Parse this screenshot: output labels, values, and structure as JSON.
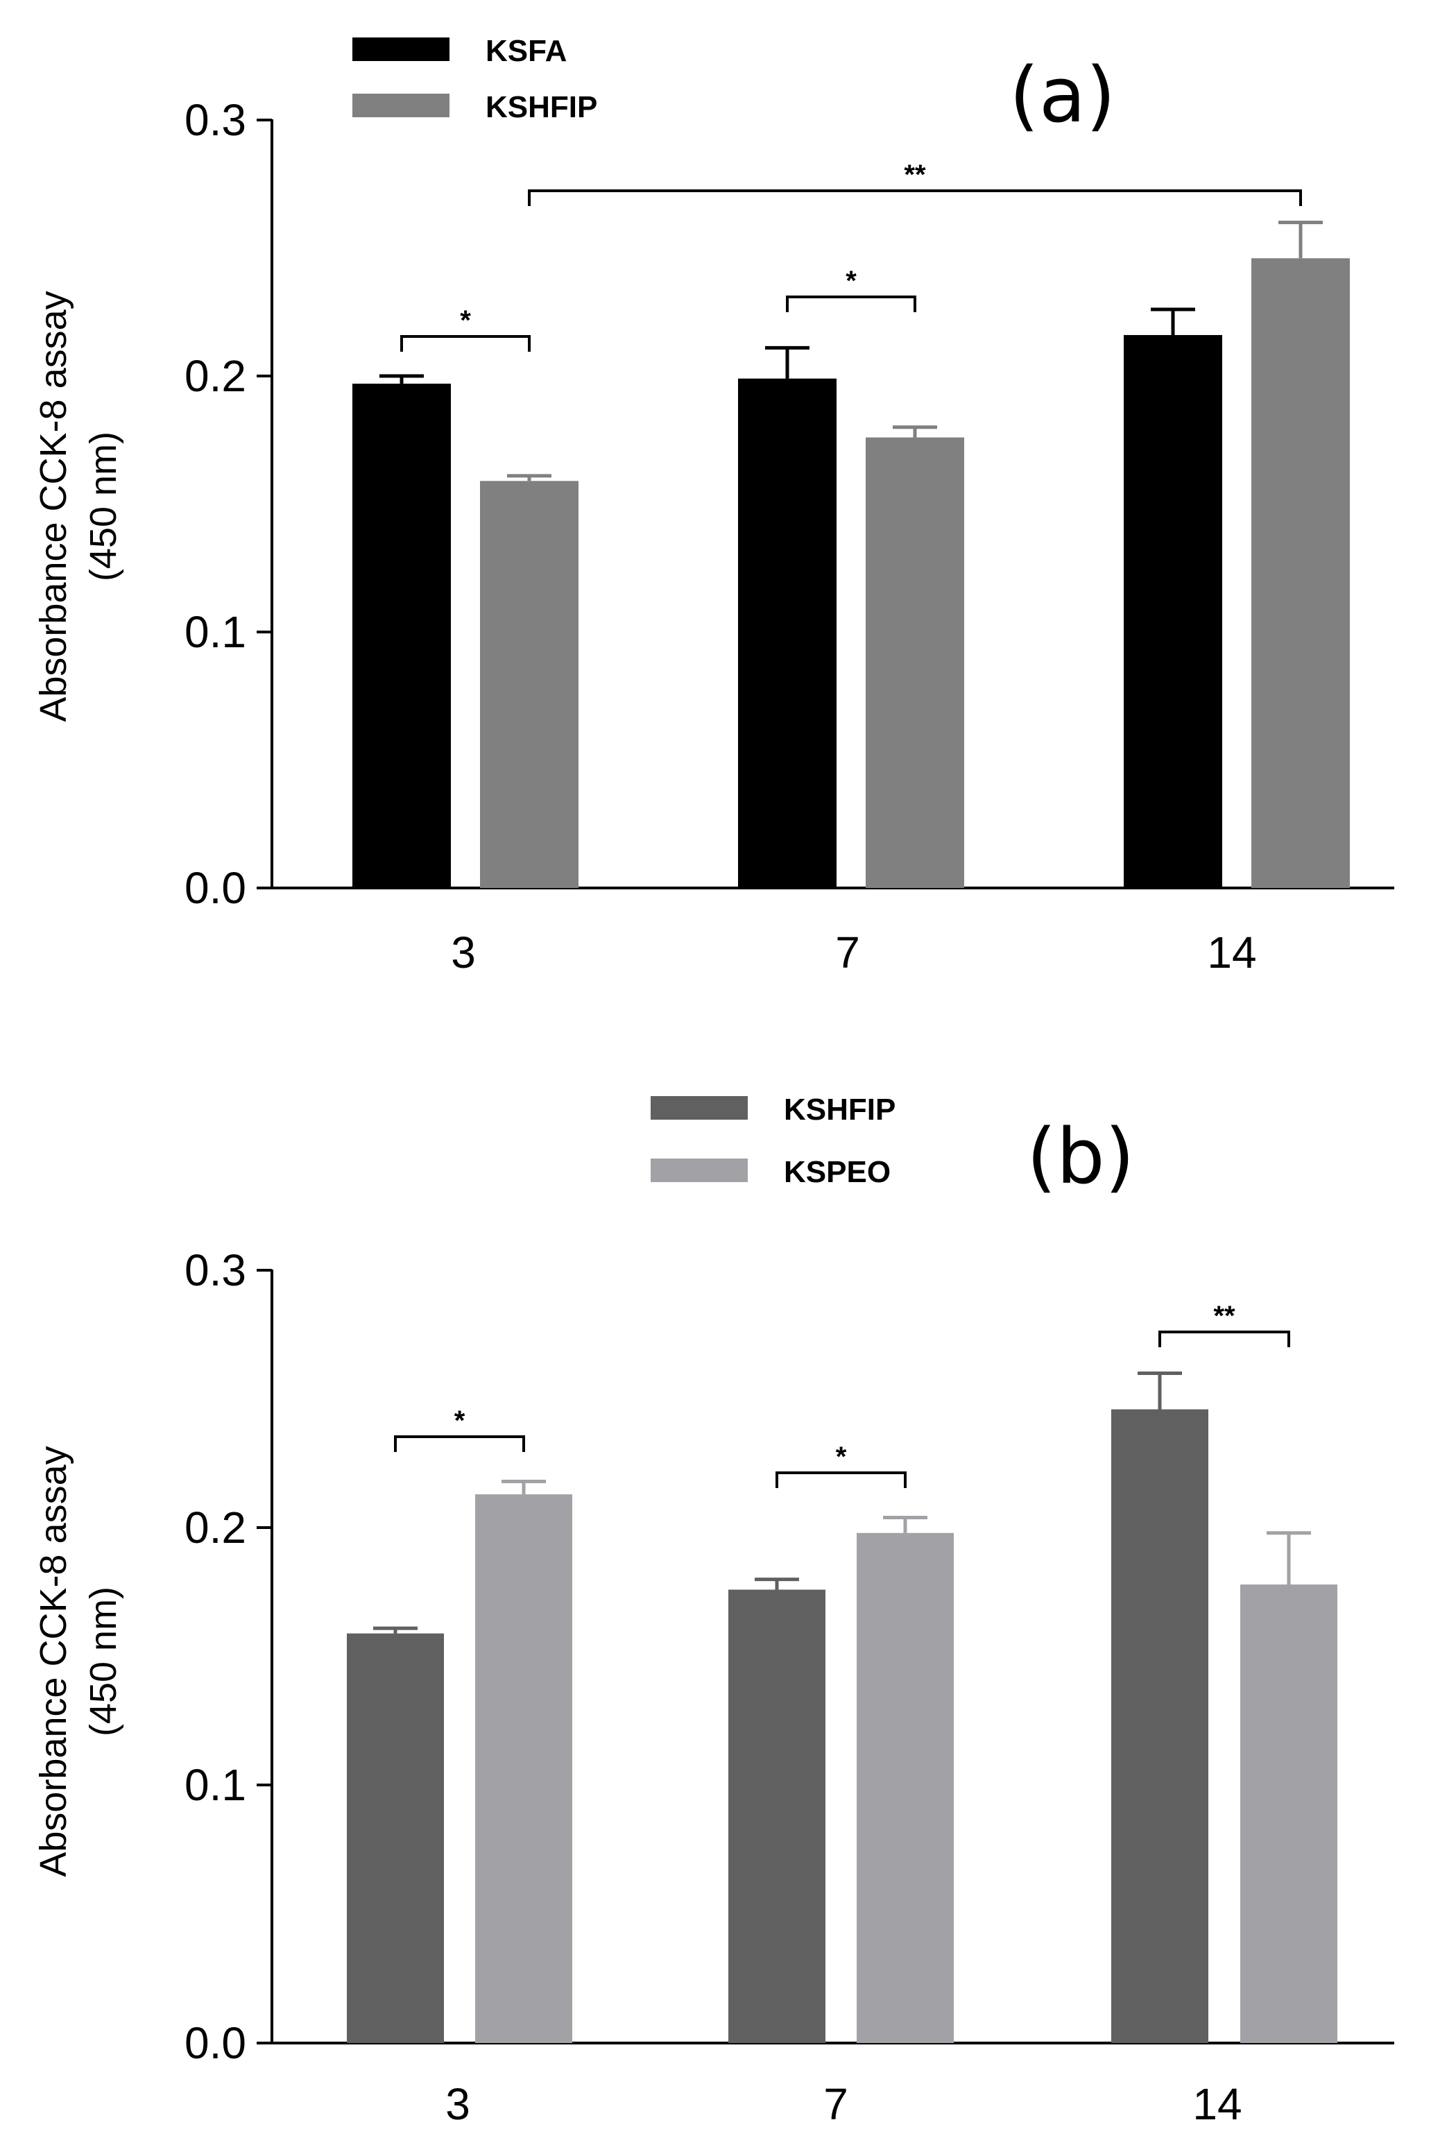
{
  "chart_data": [
    {
      "type": "bar",
      "panel_label": "(a)",
      "categories": [
        "3",
        "7",
        "14"
      ],
      "series": [
        {
          "name": "KSFA",
          "color": "#000000",
          "values": [
            0.197,
            0.199,
            0.216
          ],
          "errors": [
            0.003,
            0.012,
            0.01
          ]
        },
        {
          "name": "KSHFIP",
          "color": "#808080",
          "values": [
            0.159,
            0.176,
            0.246
          ],
          "errors": [
            0.002,
            0.004,
            0.014
          ]
        }
      ],
      "ylabel_line1": "Absorbance CCK-8 assay",
      "ylabel_line2": "(450 nm)",
      "xlabel": "",
      "ylim": [
        0,
        0.3
      ],
      "yticks": [
        "0.0",
        "0.1",
        "0.2",
        "0.3"
      ],
      "legend_position": "top-left",
      "significance": [
        {
          "from": [
            0,
            0
          ],
          "to": [
            0,
            1
          ],
          "label": "*"
        },
        {
          "from": [
            1,
            0
          ],
          "to": [
            1,
            1
          ],
          "label": "*"
        },
        {
          "from": [
            0,
            1
          ],
          "to": [
            2,
            1
          ],
          "label": "**"
        }
      ]
    },
    {
      "type": "bar",
      "panel_label": "(b)",
      "categories": [
        "3",
        "7",
        "14"
      ],
      "series": [
        {
          "name": "KSHFIP",
          "color": "#606060",
          "values": [
            0.159,
            0.176,
            0.246
          ],
          "errors": [
            0.002,
            0.004,
            0.014
          ]
        },
        {
          "name": "KSPEO",
          "color": "#a2a2a6",
          "values": [
            0.213,
            0.198,
            0.178
          ],
          "errors": [
            0.005,
            0.006,
            0.02
          ]
        }
      ],
      "ylabel_line1": "Absorbance CCK-8 assay",
      "ylabel_line2": "(450 nm)",
      "xlabel": "",
      "ylim": [
        0,
        0.3
      ],
      "yticks": [
        "0.0",
        "0.1",
        "0.2",
        "0.3"
      ],
      "legend_position": "top-center",
      "significance": [
        {
          "from": [
            0,
            0
          ],
          "to": [
            0,
            1
          ],
          "label": "*"
        },
        {
          "from": [
            1,
            0
          ],
          "to": [
            1,
            1
          ],
          "label": "*"
        },
        {
          "from": [
            2,
            0
          ],
          "to": [
            2,
            1
          ],
          "label": "**"
        }
      ]
    }
  ]
}
